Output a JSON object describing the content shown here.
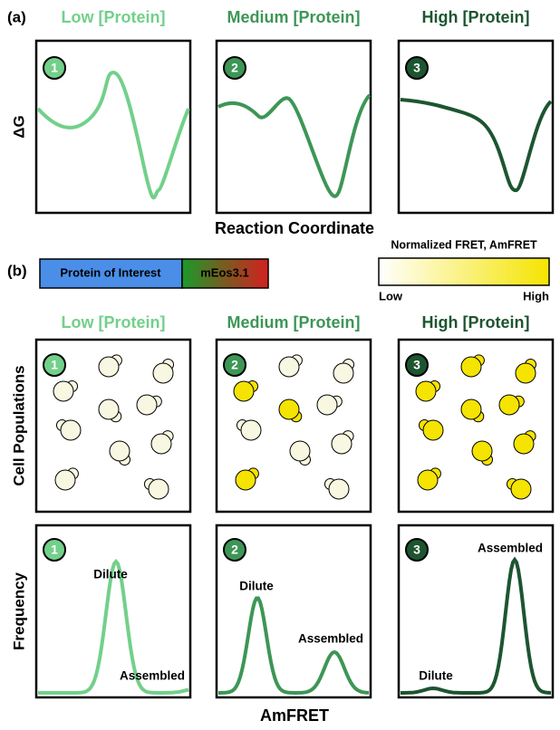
{
  "panel_a": {
    "label": "(a)",
    "columns": [
      "Low [Protein]",
      "Medium [Protein]",
      "High [Protein]"
    ],
    "numbers": [
      "1",
      "2",
      "3"
    ],
    "y_axis_label": "ΔG",
    "x_axis_label": "Reaction Coordinate"
  },
  "panel_b": {
    "label": "(b)",
    "construct": [
      "Protein of Interest",
      "mEos3.1"
    ],
    "colorbar": {
      "title": "Normalized FRET, AmFRET",
      "low": "Low",
      "high": "High"
    },
    "columns": [
      "Low [Protein]",
      "Medium [Protein]",
      "High [Protein]"
    ],
    "numbers": [
      "1",
      "2",
      "3"
    ],
    "row_labels": [
      "Cell Populations",
      "Frequency"
    ],
    "peak_labels": [
      [
        "Dilute",
        "Assembled"
      ],
      [
        "Dilute",
        "Assembled"
      ],
      [
        "Assembled",
        "Dilute"
      ]
    ],
    "x_axis_label": "AmFRET"
  }
}
